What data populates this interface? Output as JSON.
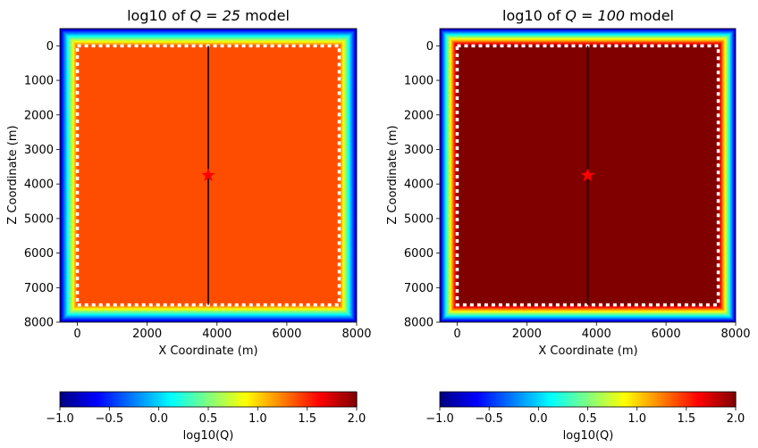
{
  "colors": {
    "colormap": "jet",
    "q25_interior": "#ff6600",
    "q100_interior": "#800000",
    "pml_outer": "#0000a0",
    "boundary_dots": "#ffffff",
    "receiver_line": "#000000",
    "source_star": "#ff0000"
  },
  "chart_data": [
    {
      "type": "heatmap",
      "title_prefix": "log10 of ",
      "title_math": "Q = 25",
      "title_suffix": " model",
      "xlabel": "X Coordinate (m)",
      "ylabel": "Z Coordinate (m)",
      "xlim": [
        -500,
        8000
      ],
      "ylim": [
        8000,
        -500
      ],
      "xticks": [
        "0",
        "2000",
        "4000",
        "6000",
        "8000"
      ],
      "xtick_values": [
        0,
        2000,
        4000,
        6000,
        8000
      ],
      "yticks": [
        "0",
        "1000",
        "2000",
        "3000",
        "4000",
        "5000",
        "6000",
        "7000",
        "8000"
      ],
      "ytick_values": [
        0,
        1000,
        2000,
        3000,
        4000,
        5000,
        6000,
        7000,
        8000
      ],
      "grid": false,
      "interior_log10Q": 1.39794,
      "domain_extent": {
        "x": [
          -500,
          8000
        ],
        "z": [
          -500,
          8000
        ]
      },
      "model_boundary": {
        "x": [
          0,
          7500
        ],
        "z": [
          0,
          7500
        ]
      },
      "receiver_line": {
        "x": 3750,
        "z": [
          0,
          7500
        ]
      },
      "source": {
        "x": 3750,
        "z": 3750
      },
      "colorbar": {
        "label": "log10(Q)",
        "range": [
          -1.0,
          2.0
        ],
        "ticks": [
          "−1.0",
          "−0.5",
          "0.0",
          "0.5",
          "1.0",
          "1.5",
          "2.0"
        ],
        "tick_values": [
          -1.0,
          -0.5,
          0.0,
          0.5,
          1.0,
          1.5,
          2.0
        ]
      }
    },
    {
      "type": "heatmap",
      "title_prefix": "log10 of ",
      "title_math": "Q = 100",
      "title_suffix": " model",
      "xlabel": "X Coordinate (m)",
      "ylabel": "Z Coordinate (m)",
      "xlim": [
        -500,
        8000
      ],
      "ylim": [
        8000,
        -500
      ],
      "xticks": [
        "0",
        "2000",
        "4000",
        "6000",
        "8000"
      ],
      "xtick_values": [
        0,
        2000,
        4000,
        6000,
        8000
      ],
      "yticks": [
        "0",
        "1000",
        "2000",
        "3000",
        "4000",
        "5000",
        "6000",
        "7000",
        "8000"
      ],
      "ytick_values": [
        0,
        1000,
        2000,
        3000,
        4000,
        5000,
        6000,
        7000,
        8000
      ],
      "grid": false,
      "interior_log10Q": 2.0,
      "domain_extent": {
        "x": [
          -500,
          8000
        ],
        "z": [
          -500,
          8000
        ]
      },
      "model_boundary": {
        "x": [
          0,
          7500
        ],
        "z": [
          0,
          7500
        ]
      },
      "receiver_line": {
        "x": 3750,
        "z": [
          0,
          7500
        ]
      },
      "source": {
        "x": 3750,
        "z": 3750
      },
      "colorbar": {
        "label": "log10(Q)",
        "range": [
          -1.0,
          2.0
        ],
        "ticks": [
          "−1.0",
          "−0.5",
          "0.0",
          "0.5",
          "1.0",
          "1.5",
          "2.0"
        ],
        "tick_values": [
          -1.0,
          -0.5,
          0.0,
          0.5,
          1.0,
          1.5,
          2.0
        ]
      }
    }
  ]
}
